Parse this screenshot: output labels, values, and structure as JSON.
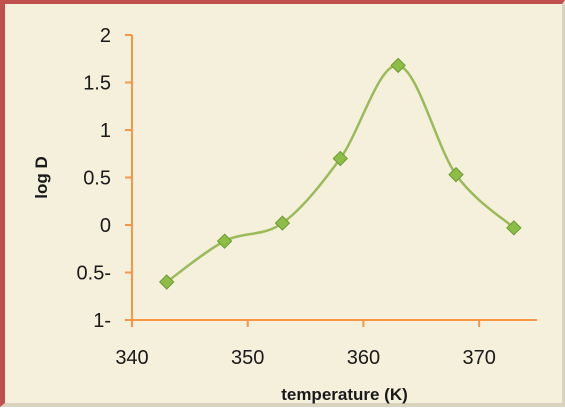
{
  "chart_data": {
    "type": "line",
    "title": "",
    "xlabel": "temperature (K)",
    "ylabel": "log D",
    "xlim": [
      340,
      375
    ],
    "ylim": [
      -1,
      2
    ],
    "x_ticks": [
      340,
      350,
      360,
      370
    ],
    "x_tick_labels": [
      "340",
      "350",
      "360",
      "370"
    ],
    "y_ticks": [
      2,
      1.5,
      1,
      0.5,
      0,
      -0.5,
      -1
    ],
    "y_tick_labels": [
      "2",
      "1.5",
      "1",
      "0.5",
      "0",
      "0.5-",
      "1-"
    ],
    "grid": false,
    "legend": false,
    "smooth": true,
    "marker": "diamond",
    "series": [
      {
        "x": [
          343,
          348,
          353,
          358,
          363,
          368,
          373
        ],
        "y": [
          -0.6,
          -0.17,
          0.02,
          0.7,
          1.68,
          0.53,
          -0.03
        ]
      }
    ]
  },
  "colors": {
    "background": "#f4f0dc",
    "axis": "#f79646",
    "line": "#9bbb59",
    "marker": "#8cbe46",
    "marker_edge": "#6f9a34",
    "frame_left": "#c0504d"
  }
}
